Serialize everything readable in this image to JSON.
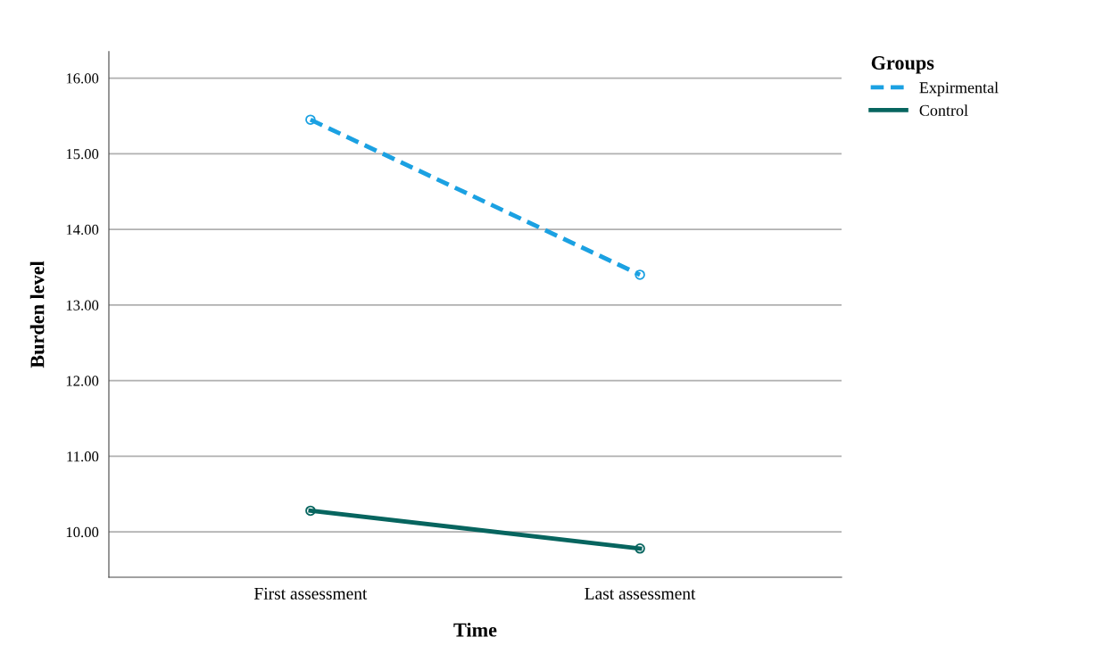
{
  "chart_data": {
    "type": "line",
    "xlabel": "Time",
    "ylabel": "Burden level",
    "legend_title": "Groups",
    "categories": [
      "First assessment",
      "Last assessment"
    ],
    "series": [
      {
        "name": "Expirmental",
        "color": "#1ba1e2",
        "values": [
          15.45,
          13.4
        ],
        "line_style": "dashed"
      },
      {
        "name": "Control",
        "color": "#07655f",
        "values": [
          10.28,
          9.78
        ],
        "line_style": "solid"
      }
    ],
    "ylim": [
      9.4,
      16.35
    ],
    "yticks": [
      {
        "value": 10,
        "label": "10.00"
      },
      {
        "value": 11,
        "label": "11.00"
      },
      {
        "value": 12,
        "label": "12.00"
      },
      {
        "value": 13,
        "label": "13.00"
      },
      {
        "value": 14,
        "label": "14.00"
      },
      {
        "value": 15,
        "label": "15.00"
      },
      {
        "value": 16,
        "label": "16.00"
      }
    ],
    "grid": "y",
    "legend": "top right",
    "marker": "circle"
  }
}
